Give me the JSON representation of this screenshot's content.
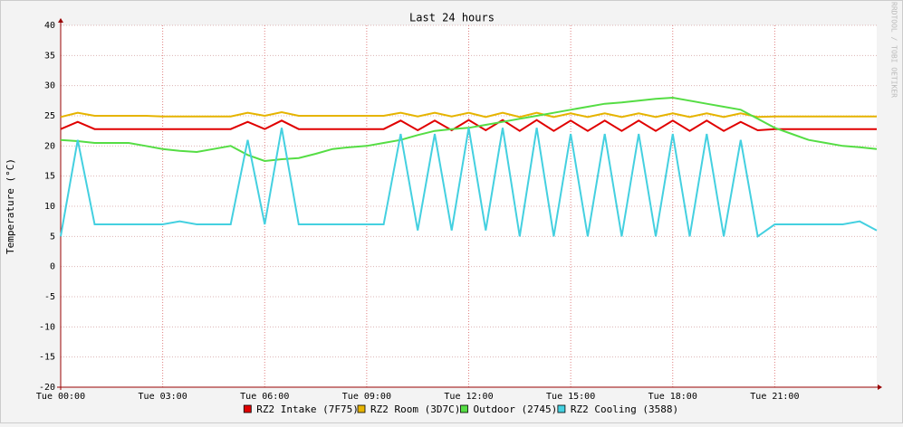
{
  "chart_data": {
    "type": "line",
    "title": "Last 24 hours",
    "y_label": "Temperature (°C)",
    "watermark": "RRDTOOL / TOBI OETIKER",
    "x": [
      0,
      0.5,
      1,
      1.5,
      2,
      2.5,
      3,
      3.5,
      4,
      4.5,
      5,
      5.5,
      6,
      6.5,
      7,
      7.5,
      8,
      8.5,
      9,
      9.5,
      10,
      10.5,
      11,
      11.5,
      12,
      12.5,
      13,
      13.5,
      14,
      14.5,
      15,
      15.5,
      16,
      16.5,
      17,
      17.5,
      18,
      18.5,
      19,
      19.5,
      20,
      20.5,
      21,
      21.5,
      22,
      22.5,
      23,
      23.5,
      24
    ],
    "xlim": [
      0,
      24
    ],
    "xticks": [
      {
        "value": 0,
        "label": "Tue 00:00"
      },
      {
        "value": 3,
        "label": "Tue 03:00"
      },
      {
        "value": 6,
        "label": "Tue 06:00"
      },
      {
        "value": 9,
        "label": "Tue 09:00"
      },
      {
        "value": 12,
        "label": "Tue 12:00"
      },
      {
        "value": 15,
        "label": "Tue 15:00"
      },
      {
        "value": 18,
        "label": "Tue 18:00"
      },
      {
        "value": 21,
        "label": "Tue 21:00"
      }
    ],
    "ylim": [
      -20,
      40
    ],
    "yticks": [
      -20,
      -15,
      -10,
      -5,
      0,
      5,
      10,
      15,
      20,
      25,
      30,
      35,
      40
    ],
    "grid": true,
    "series": [
      {
        "name": "RZ2 Intake (7F75)",
        "color": "#e00000",
        "values": [
          22.8,
          24,
          22.8,
          22.8,
          22.8,
          22.8,
          22.8,
          22.8,
          22.8,
          22.8,
          22.8,
          24,
          22.8,
          24.2,
          22.8,
          22.8,
          22.8,
          22.8,
          22.8,
          22.8,
          24.2,
          22.6,
          24.2,
          22.6,
          24.3,
          22.6,
          24.3,
          22.5,
          24.3,
          22.5,
          24.2,
          22.5,
          24.2,
          22.5,
          24.2,
          22.5,
          24.2,
          22.5,
          24.2,
          22.5,
          24,
          22.6,
          22.8,
          22.8,
          22.8,
          22.8,
          22.8,
          22.8,
          22.8
        ]
      },
      {
        "name": "RZ2 Room (3D7C)",
        "color": "#e6b400",
        "values": [
          24.8,
          25.5,
          25,
          25,
          25,
          25,
          24.9,
          24.9,
          24.9,
          24.9,
          24.9,
          25.5,
          25,
          25.6,
          25,
          25,
          25,
          25,
          25,
          25,
          25.5,
          24.9,
          25.5,
          24.9,
          25.5,
          24.8,
          25.5,
          24.8,
          25.5,
          24.8,
          25.4,
          24.8,
          25.4,
          24.8,
          25.4,
          24.8,
          25.4,
          24.8,
          25.4,
          24.8,
          25.4,
          24.8,
          24.9,
          24.9,
          24.9,
          24.9,
          24.9,
          24.9,
          24.9
        ]
      },
      {
        "name": "Outdoor (2745)",
        "color": "#55dd44",
        "values": [
          21,
          20.8,
          20.5,
          20.5,
          20.5,
          20,
          19.5,
          19.2,
          19,
          19.5,
          20,
          18.5,
          17.5,
          17.8,
          18,
          18.7,
          19.5,
          19.8,
          20,
          20.5,
          21,
          21.8,
          22.5,
          22.8,
          23,
          23.5,
          24,
          24.5,
          25,
          25.5,
          26,
          26.5,
          27,
          27.2,
          27.5,
          27.8,
          28,
          27.5,
          27,
          26.5,
          26,
          24.5,
          23,
          22,
          21,
          20.5,
          20,
          19.8,
          19.5
        ]
      },
      {
        "name": "RZ2 Cooling (3588)",
        "color": "#44d0e0",
        "values": [
          5,
          21,
          7,
          7,
          7,
          7,
          7,
          7.5,
          7,
          7,
          7,
          21,
          7,
          23,
          7,
          7,
          7,
          7,
          7,
          7,
          22,
          6,
          22,
          6,
          23,
          6,
          23,
          5,
          23,
          5,
          22,
          5,
          22,
          5,
          22,
          5,
          22,
          5,
          22,
          5,
          21,
          5,
          7,
          7,
          7,
          7,
          7,
          7.5,
          6
        ]
      }
    ]
  }
}
